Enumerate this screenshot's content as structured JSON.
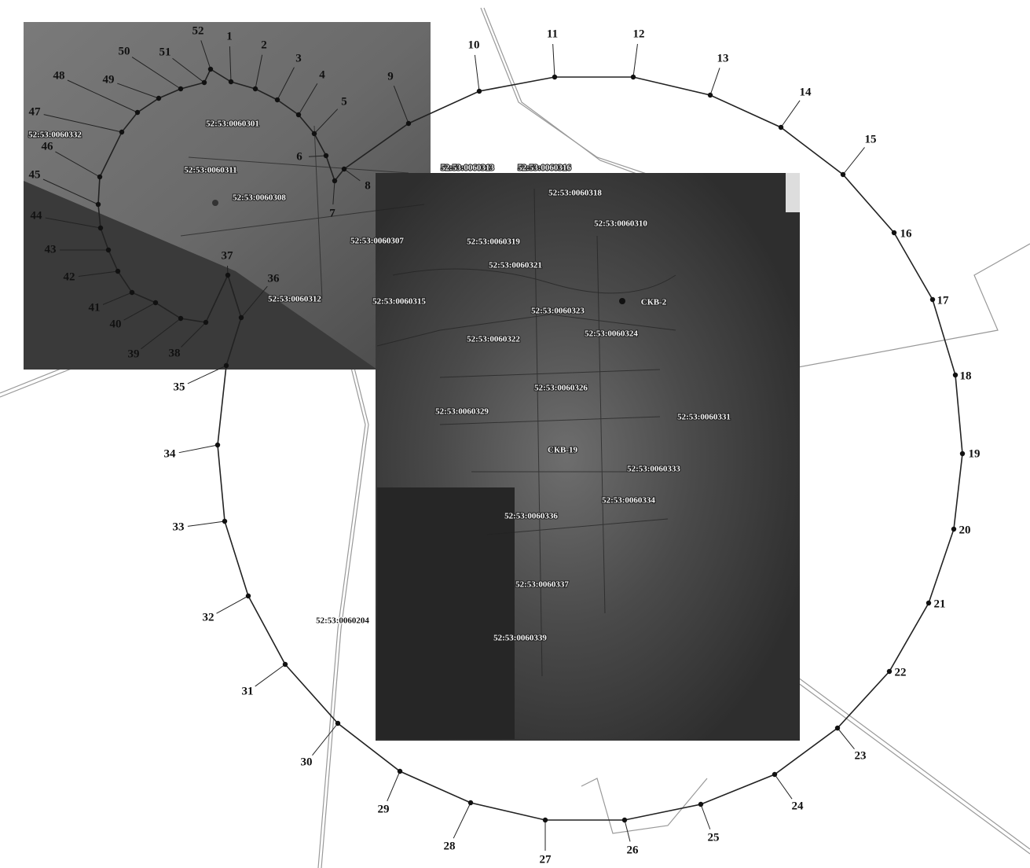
{
  "points": [
    "1",
    "2",
    "3",
    "4",
    "5",
    "6",
    "7",
    "8",
    "9",
    "10",
    "11",
    "12",
    "13",
    "14",
    "15",
    "16",
    "17",
    "18",
    "19",
    "20",
    "21",
    "22",
    "23",
    "24",
    "25",
    "26",
    "27",
    "28",
    "29",
    "30",
    "31",
    "32",
    "33",
    "34",
    "35",
    "36",
    "37",
    "38",
    "39",
    "40",
    "41",
    "42",
    "43",
    "44",
    "45",
    "46",
    "47",
    "48",
    "49",
    "50",
    "51",
    "52"
  ],
  "parcels": [
    "52:53:0060301",
    "52:53:0060332",
    "52:53:0060311",
    "52:53:0060308",
    "52:53:0060307",
    "52:53:0060312",
    "52:53:0060315",
    "52:53:0060313",
    "52:53:0060316",
    "52:53:0060318",
    "52:53:0060319",
    "52:53:0060321",
    "52:53:0060310",
    "52:53:0060323",
    "СКВ-2",
    "52:53:0060324",
    "52:53:0060322",
    "52:53:0060326",
    "52:53:0060329",
    "52:53:0060331",
    "СКВ-19",
    "52:53:0060333",
    "52:53:0060334",
    "52:53:0060336",
    "52:53:0060337",
    "52:53:0060339",
    "52:53:0060204"
  ]
}
